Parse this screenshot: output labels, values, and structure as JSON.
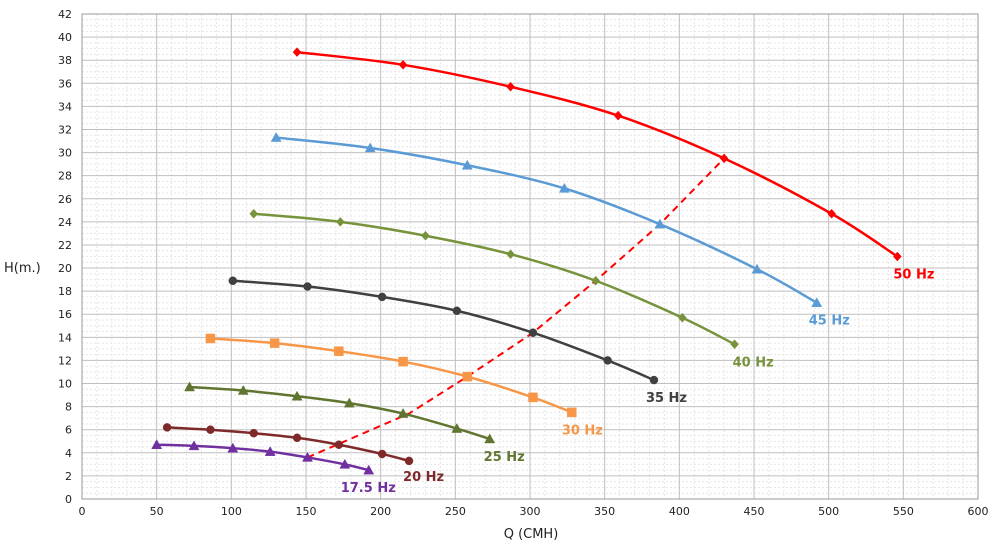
{
  "chart_data": {
    "type": "line",
    "title": "",
    "xlabel": "Q (CMH)",
    "ylabel": "H(m.)",
    "xlim": [
      0,
      600
    ],
    "ylim": [
      0,
      42
    ],
    "x_major_step": 50,
    "y_major_step": 2,
    "grid": true,
    "legend": "inline labels",
    "series": [
      {
        "name": "50 Hz",
        "color": "#ff0000",
        "marker": "diamond",
        "x": [
          144,
          215,
          287,
          359,
          430,
          502,
          546
        ],
        "y": [
          38.7,
          37.6,
          35.7,
          33.2,
          29.5,
          24.7,
          21.0
        ]
      },
      {
        "name": "45 Hz",
        "color": "#5b9bd5",
        "marker": "triangle",
        "x": [
          130,
          193,
          258,
          323,
          387,
          452,
          492
        ],
        "y": [
          31.3,
          30.4,
          28.9,
          26.9,
          23.8,
          19.9,
          17.0
        ]
      },
      {
        "name": "40 Hz",
        "color": "#77933c",
        "marker": "diamond",
        "x": [
          115,
          173,
          230,
          287,
          344,
          402,
          437
        ],
        "y": [
          24.7,
          24.0,
          22.8,
          21.2,
          18.9,
          15.7,
          13.4
        ]
      },
      {
        "name": "35 Hz",
        "color": "#404040",
        "marker": "circle",
        "x": [
          101,
          151,
          201,
          251,
          302,
          352,
          383
        ],
        "y": [
          18.9,
          18.4,
          17.5,
          16.3,
          14.4,
          12.0,
          10.3
        ]
      },
      {
        "name": "30 Hz",
        "color": "#f79646",
        "marker": "square",
        "x": [
          86,
          129,
          172,
          215,
          258,
          302,
          328
        ],
        "y": [
          13.9,
          13.5,
          12.8,
          11.9,
          10.6,
          8.8,
          7.5
        ]
      },
      {
        "name": "25 Hz",
        "color": "#5f7530",
        "marker": "triangle",
        "x": [
          72,
          108,
          144,
          179,
          215,
          251,
          273
        ],
        "y": [
          9.7,
          9.4,
          8.9,
          8.3,
          7.4,
          6.1,
          5.2
        ]
      },
      {
        "name": "20 Hz",
        "color": "#7f2a2a",
        "marker": "circle",
        "x": [
          57,
          86,
          115,
          144,
          172,
          201,
          219
        ],
        "y": [
          6.2,
          6.0,
          5.7,
          5.3,
          4.7,
          3.9,
          3.3
        ]
      },
      {
        "name": "17.5 Hz",
        "color": "#7030a0",
        "marker": "triangle",
        "x": [
          50,
          75,
          101,
          126,
          151,
          176,
          192
        ],
        "y": [
          4.7,
          4.6,
          4.4,
          4.1,
          3.6,
          3.0,
          2.5
        ]
      }
    ],
    "system_curve": {
      "color": "#ff0000",
      "style": "dashed",
      "x": [
        151,
        219,
        258,
        302,
        344,
        387,
        430
      ],
      "y": [
        3.6,
        7.4,
        10.6,
        14.4,
        18.9,
        23.8,
        29.5
      ]
    }
  }
}
